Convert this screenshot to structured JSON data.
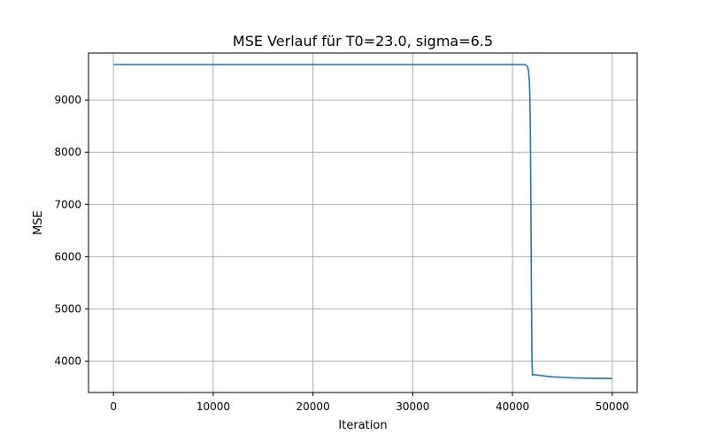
{
  "chart_data": {
    "type": "line",
    "title": "MSE Verlauf für T0=23.0, sigma=6.5",
    "xlabel": "Iteration",
    "ylabel": "MSE",
    "xlim": [
      -2500,
      52500
    ],
    "ylim": [
      3400,
      9900
    ],
    "grid": true,
    "legend": "none",
    "x_ticks": [
      0,
      10000,
      20000,
      30000,
      40000,
      50000
    ],
    "x_tick_labels": [
      "0",
      "10000",
      "20000",
      "30000",
      "40000",
      "50000"
    ],
    "y_ticks": [
      4000,
      5000,
      6000,
      7000,
      8000,
      9000
    ],
    "y_tick_labels": [
      "4000",
      "5000",
      "6000",
      "7000",
      "8000",
      "9000"
    ],
    "series": [
      {
        "color": "#1f77b4",
        "x": [
          0,
          5000,
          10000,
          15000,
          20000,
          25000,
          30000,
          35000,
          40000,
          41000,
          41300,
          41500,
          41600,
          41700,
          41750,
          41800,
          41850,
          41900,
          41950,
          42000,
          42050,
          42100,
          42200,
          42400,
          42700,
          43000,
          43500,
          44000,
          45000,
          46000,
          47000,
          48000,
          49000,
          50000
        ],
        "y": [
          9680,
          9680,
          9680,
          9680,
          9680,
          9680,
          9680,
          9680,
          9680,
          9680,
          9675,
          9640,
          9560,
          9350,
          9000,
          8200,
          6800,
          5200,
          4100,
          3730,
          3750,
          3745,
          3740,
          3735,
          3730,
          3720,
          3710,
          3700,
          3690,
          3680,
          3675,
          3672,
          3670,
          3668
        ]
      }
    ]
  }
}
